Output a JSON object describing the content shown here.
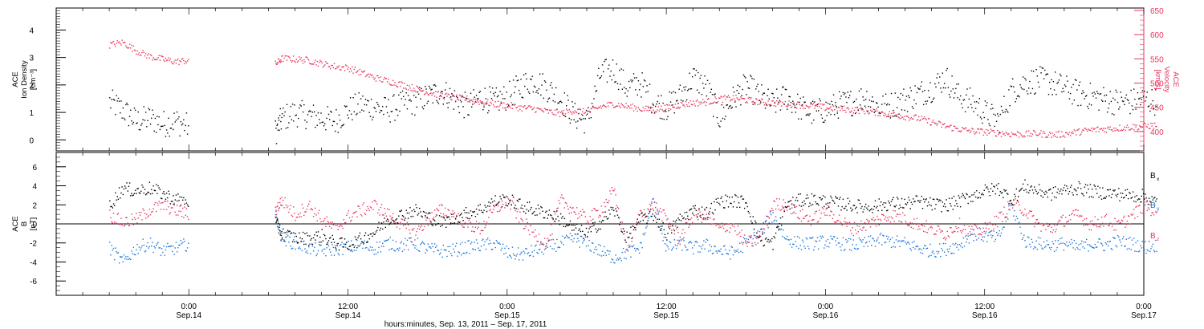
{
  "chart_data": [
    {
      "type": "scatter",
      "panel": "top",
      "ylabel_left": [
        "ACE",
        "Ion Density",
        "[cm⁻³]"
      ],
      "ylabel_right": [
        "ACE",
        "Velocity",
        "[km/s]"
      ],
      "ylim_left": [
        -0.4,
        4.8
      ],
      "ylim_right": [
        360,
        655
      ],
      "yticks_left": [
        "0",
        "1",
        "2",
        "3",
        "4"
      ],
      "yticks_right": [
        "400",
        "450",
        "500",
        "550",
        "600",
        "650"
      ],
      "series": [
        {
          "axis": "left",
          "color": "#000000",
          "x_hours": [
            -6,
            -5,
            -4,
            -3,
            -2,
            -1,
            0,
            6.5,
            7,
            8,
            9,
            10,
            11,
            12,
            13,
            14,
            15,
            16,
            17,
            18,
            19,
            20,
            21,
            22,
            23,
            24,
            25,
            26,
            27,
            28,
            29,
            30,
            31,
            32,
            33,
            34,
            35,
            36,
            37,
            38,
            39,
            40,
            41,
            42,
            43,
            44,
            45,
            46,
            47,
            48,
            49,
            50,
            51,
            52,
            53,
            54,
            55,
            56,
            57,
            58,
            59,
            60,
            61,
            62,
            63,
            64,
            65,
            66,
            67,
            68,
            69,
            70,
            71,
            72,
            73
          ],
          "values": [
            1.4,
            1.1,
            0.7,
            0.8,
            0.6,
            0.7,
            0.5,
            0.3,
            0.8,
            1.0,
            0.9,
            0.8,
            0.7,
            1.1,
            1.3,
            1.2,
            1.1,
            1.3,
            1.4,
            1.6,
            1.8,
            1.5,
            1.2,
            1.6,
            1.4,
            1.6,
            2.0,
            2.2,
            1.9,
            1.5,
            0.9,
            0.7,
            2.4,
            2.6,
            1.9,
            2.1,
            1.4,
            1.2,
            1.6,
            2.3,
            1.9,
            0.8,
            1.5,
            2.0,
            1.6,
            1.3,
            1.6,
            1.2,
            1.0,
            1.1,
            1.3,
            1.4,
            1.6,
            1.2,
            1.3,
            1.5,
            1.7,
            1.9,
            2.3,
            1.6,
            1.4,
            1.0,
            0.7,
            1.8,
            2.1,
            2.2,
            2.1,
            1.9,
            1.7,
            1.6,
            1.5,
            1.4,
            1.4,
            1.5,
            1.4
          ]
        },
        {
          "axis": "right",
          "color": "#e8355e",
          "x_hours": [
            -6,
            -5,
            -4,
            -3,
            -2,
            -1,
            0,
            6.5,
            7,
            8,
            9,
            10,
            11,
            12,
            13,
            14,
            15,
            16,
            17,
            18,
            19,
            20,
            21,
            22,
            23,
            24,
            25,
            26,
            27,
            28,
            29,
            30,
            31,
            32,
            33,
            34,
            35,
            36,
            37,
            38,
            39,
            40,
            41,
            42,
            43,
            44,
            45,
            46,
            47,
            48,
            49,
            50,
            51,
            52,
            53,
            54,
            55,
            56,
            57,
            58,
            59,
            60,
            61,
            62,
            63,
            64,
            65,
            66,
            67,
            68,
            69,
            70,
            71,
            72,
            73
          ],
          "values": [
            580,
            585,
            568,
            556,
            550,
            545,
            548,
            540,
            552,
            550,
            548,
            541,
            535,
            532,
            522,
            512,
            505,
            498,
            490,
            482,
            476,
            470,
            468,
            462,
            458,
            455,
            450,
            448,
            442,
            438,
            445,
            440,
            452,
            458,
            453,
            448,
            446,
            450,
            456,
            460,
            462,
            468,
            470,
            466,
            462,
            460,
            458,
            456,
            454,
            450,
            448,
            446,
            444,
            440,
            436,
            432,
            428,
            420,
            412,
            406,
            402,
            400,
            398,
            396,
            395,
            397,
            394,
            396,
            400,
            404,
            406,
            408,
            410,
            412,
            414
          ]
        }
      ]
    },
    {
      "type": "scatter",
      "panel": "bottom",
      "ylabel_left": [
        "ACE",
        "B",
        "[nT]"
      ],
      "ylim": [
        -7.5,
        7.5
      ],
      "yticks": [
        "6",
        "4",
        "2",
        "0",
        "-2",
        "-4",
        "-6"
      ],
      "zero_line": true,
      "legend_position": "right",
      "series": [
        {
          "name": "B",
          "subscript": "x",
          "color": "#000000",
          "x_hours": [
            -6,
            -5,
            -4,
            -3,
            -2,
            -1,
            0,
            6.5,
            7,
            8,
            9,
            10,
            11,
            12,
            13,
            14,
            15,
            16,
            17,
            18,
            19,
            20,
            21,
            22,
            23,
            24,
            25,
            26,
            27,
            28,
            29,
            30,
            31,
            32,
            33,
            34,
            35,
            36,
            37,
            38,
            39,
            40,
            41,
            42,
            43,
            44,
            45,
            46,
            47,
            48,
            49,
            50,
            51,
            52,
            53,
            54,
            55,
            56,
            57,
            58,
            59,
            60,
            61,
            62,
            63,
            64,
            65,
            66,
            67,
            68,
            69,
            70,
            71,
            72,
            73
          ],
          "values": [
            2.0,
            3.8,
            3.5,
            3.8,
            3.2,
            2.6,
            2.4,
            0.2,
            -1.0,
            -1.4,
            -1.5,
            -1.2,
            -2.0,
            -2.2,
            -1.5,
            -0.8,
            0.5,
            1.0,
            1.5,
            0.8,
            0.2,
            0.6,
            1.2,
            1.6,
            2.4,
            2.6,
            2.0,
            1.5,
            1.2,
            0.6,
            -0.5,
            -1.0,
            0.2,
            1.6,
            -1.5,
            0.5,
            1.0,
            -1.0,
            0.5,
            1.5,
            1.2,
            2.4,
            2.5,
            2.3,
            -1.5,
            -2.0,
            2.0,
            2.5,
            2.6,
            2.4,
            2.2,
            2.0,
            1.8,
            2.0,
            2.2,
            2.2,
            2.4,
            2.1,
            2.0,
            2.4,
            3.0,
            3.5,
            3.8,
            2.6,
            4.0,
            3.5,
            3.2,
            3.6,
            3.8,
            3.5,
            3.3,
            3.2,
            3.0,
            3.0,
            2.2
          ]
        },
        {
          "name": "B",
          "subscript": "y",
          "color": "#1a73d8",
          "x_hours": [
            -6,
            -5,
            -4,
            -3,
            -2,
            -1,
            0,
            6.5,
            7,
            8,
            9,
            10,
            11,
            12,
            13,
            14,
            15,
            16,
            17,
            18,
            19,
            20,
            21,
            22,
            23,
            24,
            25,
            26,
            27,
            28,
            29,
            30,
            31,
            32,
            33,
            34,
            35,
            36,
            37,
            38,
            39,
            40,
            41,
            42,
            43,
            44,
            45,
            46,
            47,
            48,
            49,
            50,
            51,
            52,
            53,
            54,
            55,
            56,
            57,
            58,
            59,
            60,
            61,
            62,
            63,
            64,
            65,
            66,
            67,
            68,
            69,
            70,
            71,
            72,
            73
          ],
          "values": [
            -2.5,
            -4.0,
            -2.5,
            -2.0,
            -2.8,
            -2.5,
            -2.0,
            1.0,
            -1.5,
            -2.0,
            -2.5,
            -2.8,
            -2.6,
            -2.4,
            -2.2,
            -2.5,
            -2.0,
            -2.2,
            -2.0,
            -2.6,
            -2.8,
            -2.7,
            -2.4,
            -2.2,
            -2.0,
            -3.0,
            -3.2,
            -2.8,
            -2.4,
            -2.0,
            -1.5,
            -2.0,
            -2.8,
            -3.5,
            -3.0,
            -2.5,
            2.5,
            -2.6,
            -2.0,
            -2.5,
            -2.2,
            -2.8,
            -3.0,
            -2.0,
            -1.0,
            1.0,
            -1.5,
            -2.0,
            -2.0,
            -1.8,
            -2.0,
            -2.2,
            -2.0,
            -1.6,
            -1.8,
            -2.0,
            -2.5,
            -2.8,
            -2.6,
            -2.2,
            -1.0,
            -1.2,
            -1.5,
            2.0,
            -1.8,
            -2.0,
            -2.2,
            -2.0,
            -2.5,
            -2.0,
            -2.2,
            -1.8,
            -2.0,
            -2.4,
            -2.2
          ]
        },
        {
          "name": "B",
          "subscript": "z",
          "color": "#e8355e",
          "x_hours": [
            -6,
            -5,
            -4,
            -3,
            -2,
            -1,
            0,
            6.5,
            7,
            8,
            9,
            10,
            11,
            12,
            13,
            14,
            15,
            16,
            17,
            18,
            19,
            20,
            21,
            22,
            23,
            24,
            25,
            26,
            27,
            28,
            29,
            30,
            31,
            32,
            33,
            34,
            35,
            36,
            37,
            38,
            39,
            40,
            41,
            42,
            43,
            44,
            45,
            46,
            47,
            48,
            49,
            50,
            51,
            52,
            53,
            54,
            55,
            56,
            57,
            58,
            59,
            60,
            61,
            62,
            63,
            64,
            65,
            66,
            67,
            68,
            69,
            70,
            71,
            72,
            73
          ],
          "values": [
            1.0,
            0.2,
            0.5,
            1.5,
            2.0,
            1.5,
            1.0,
            1.5,
            2.5,
            1.0,
            2.0,
            0.5,
            -0.5,
            0.8,
            1.5,
            2.0,
            1.0,
            0.0,
            -1.0,
            0.5,
            1.5,
            1.0,
            0.0,
            -0.5,
            1.5,
            2.5,
            0.5,
            -1.0,
            -2.0,
            2.5,
            1.5,
            0.5,
            1.5,
            3.5,
            -2.5,
            1.0,
            2.0,
            0.5,
            -1.5,
            1.0,
            0.8,
            -0.5,
            0.0,
            -2.0,
            -1.5,
            2.0,
            2.2,
            1.0,
            0.5,
            1.5,
            0.5,
            -0.5,
            0.0,
            0.5,
            1.0,
            0.5,
            0.0,
            -0.5,
            -1.0,
            0.0,
            -0.8,
            -0.5,
            0.5,
            2.2,
            1.5,
            0.0,
            -0.5,
            0.5,
            1.0,
            0.0,
            0.5,
            -0.2,
            0.8,
            2.0,
            1.2
          ]
        }
      ]
    }
  ],
  "x_axis": {
    "range_hours": [
      -10,
      72
    ],
    "ticks": [
      {
        "h": 0,
        "time": "0:00",
        "date": "Sep.14"
      },
      {
        "h": 12,
        "time": "12:00",
        "date": "Sep.14"
      },
      {
        "h": 24,
        "time": "0:00",
        "date": "Sep.15"
      },
      {
        "h": 36,
        "time": "12:00",
        "date": "Sep.15"
      },
      {
        "h": 48,
        "time": "0:00",
        "date": "Sep.16"
      },
      {
        "h": 60,
        "time": "12:00",
        "date": "Sep.16"
      },
      {
        "h": 72,
        "time": "0:00",
        "date": "Sep.17"
      }
    ],
    "label": "hours:minutes, Sep. 13, 2011 – Sep. 17, 2011"
  }
}
